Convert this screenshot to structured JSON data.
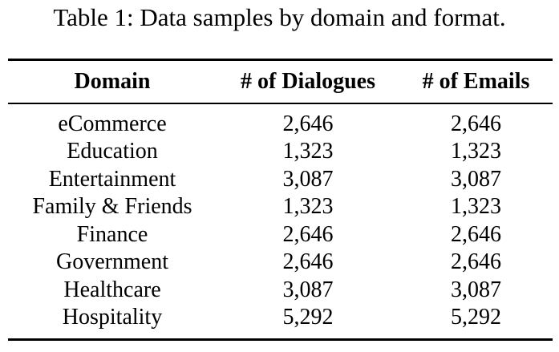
{
  "table": {
    "caption": "Table 1: Data samples by domain and format.",
    "headers": {
      "domain": "Domain",
      "dialogues": "# of Dialogues",
      "emails": "# of Emails"
    },
    "rows": [
      {
        "domain": "eCommerce",
        "dialogues": "2,646",
        "emails": "2,646"
      },
      {
        "domain": "Education",
        "dialogues": "1,323",
        "emails": "1,323"
      },
      {
        "domain": "Entertainment",
        "dialogues": "3,087",
        "emails": "3,087"
      },
      {
        "domain": "Family & Friends",
        "dialogues": "1,323",
        "emails": "1,323"
      },
      {
        "domain": "Finance",
        "dialogues": "2,646",
        "emails": "2,646"
      },
      {
        "domain": "Government",
        "dialogues": "2,646",
        "emails": "2,646"
      },
      {
        "domain": "Healthcare",
        "dialogues": "3,087",
        "emails": "3,087"
      },
      {
        "domain": "Hospitality",
        "dialogues": "5,292",
        "emails": "5,292"
      }
    ]
  }
}
